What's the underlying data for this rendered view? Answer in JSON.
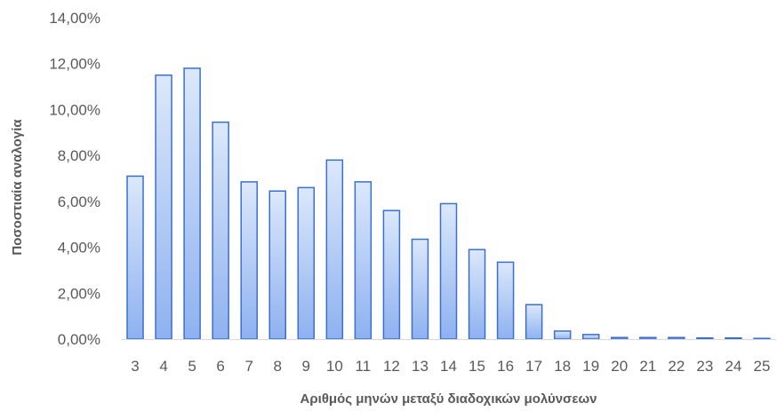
{
  "chart_data": {
    "type": "bar",
    "title": "",
    "xlabel": "Αριθμός μηνών μεταξύ διαδοχικών μολύνσεων",
    "ylabel": "Ποσοστιαία αναλογία",
    "categories": [
      "3",
      "4",
      "5",
      "6",
      "7",
      "8",
      "9",
      "10",
      "11",
      "12",
      "13",
      "14",
      "15",
      "16",
      "17",
      "18",
      "19",
      "20",
      "21",
      "22",
      "23",
      "24",
      "25"
    ],
    "values": [
      7.1,
      11.5,
      11.8,
      9.45,
      6.85,
      6.45,
      6.6,
      7.8,
      6.85,
      5.6,
      4.35,
      5.9,
      3.9,
      3.35,
      1.5,
      0.35,
      0.2,
      0.07,
      0.07,
      0.07,
      0.05,
      0.05,
      0.03
    ],
    "ylim": [
      0,
      14
    ],
    "ytick_labels": [
      "0,00%",
      "2,00%",
      "4,00%",
      "6,00%",
      "8,00%",
      "10,00%",
      "12,00%",
      "14,00%"
    ],
    "grid": false,
    "legend": "none",
    "colors": {
      "bar_fill_top": "#dce8fb",
      "bar_fill_bottom": "#8eb1f0",
      "bar_stroke": "#3a6fd0",
      "axis_line": "#d9d9d9",
      "text": "#595959"
    }
  }
}
